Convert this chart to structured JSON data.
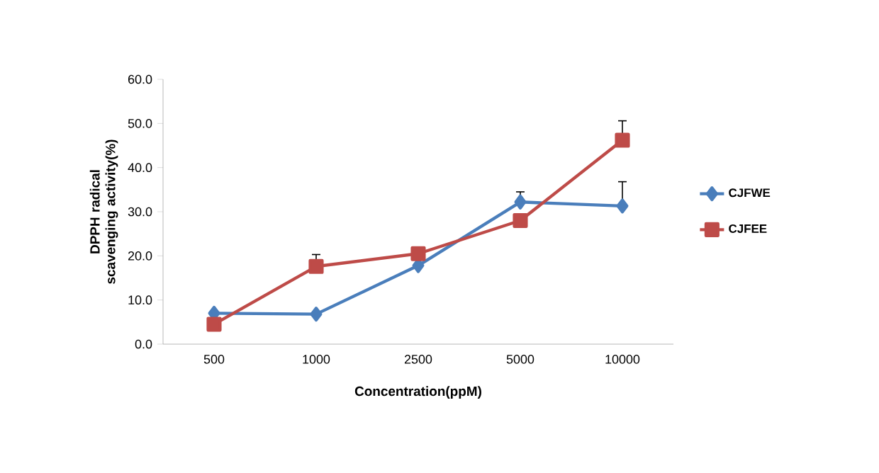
{
  "chart_data": {
    "type": "line",
    "xlabel": "Concentration(ppM)",
    "ylabel": "DPPH radical scavenging activity(%)",
    "categories": [
      "500",
      "1000",
      "2500",
      "5000",
      "10000"
    ],
    "series": [
      {
        "name": "CJFWE",
        "color": "#4a7ebb",
        "marker": "diamond",
        "values": [
          7.0,
          6.8,
          17.8,
          32.2,
          31.3
        ],
        "errors": [
          null,
          null,
          null,
          [
            32.2,
            34.5
          ],
          [
            31.3,
            36.8
          ]
        ]
      },
      {
        "name": "CJFEE",
        "color": "#be4b48",
        "marker": "square",
        "values": [
          4.5,
          17.6,
          20.5,
          28.0,
          46.2
        ],
        "errors": [
          null,
          [
            17.6,
            20.3
          ],
          null,
          null,
          [
            46.2,
            50.6
          ]
        ]
      }
    ],
    "ylim": [
      0,
      60
    ],
    "yticks": [
      {
        "value": 0,
        "label": "0.0"
      },
      {
        "value": 10,
        "label": "10.0"
      },
      {
        "value": 20,
        "label": "20.0"
      },
      {
        "value": 30,
        "label": "30.0"
      },
      {
        "value": 40,
        "label": "40.0"
      },
      {
        "value": 50,
        "label": "50.0"
      },
      {
        "value": 60,
        "label": "60.0"
      }
    ],
    "legend": "right",
    "grid": false
  }
}
